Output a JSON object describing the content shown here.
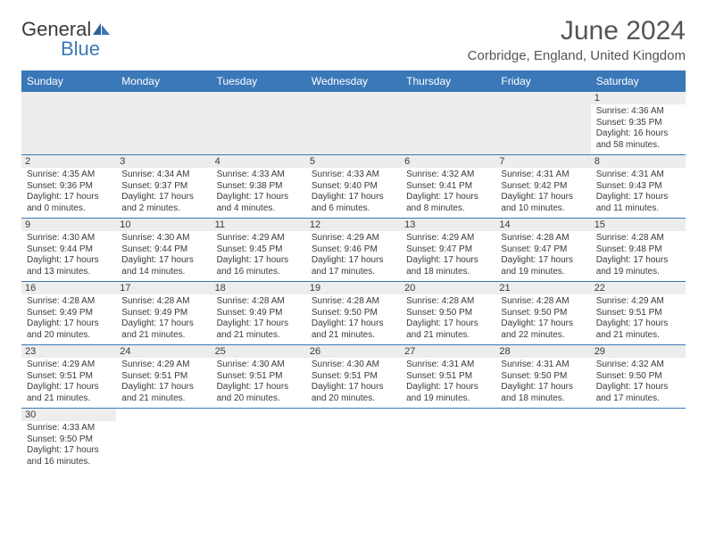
{
  "logo": {
    "text1": "General",
    "text2": "Blue"
  },
  "title": "June 2024",
  "location": "Corbridge, England, United Kingdom",
  "colors": {
    "header_bg": "#3a78b8",
    "header_fg": "#ffffff",
    "daynum_bg": "#ededed",
    "border": "#3a78b8",
    "text": "#3a3a3a"
  },
  "weekdays": [
    "Sunday",
    "Monday",
    "Tuesday",
    "Wednesday",
    "Thursday",
    "Friday",
    "Saturday"
  ],
  "days": {
    "1": {
      "sunrise": "4:36 AM",
      "sunset": "9:35 PM",
      "daylight": "16 hours and 58 minutes."
    },
    "2": {
      "sunrise": "4:35 AM",
      "sunset": "9:36 PM",
      "daylight": "17 hours and 0 minutes."
    },
    "3": {
      "sunrise": "4:34 AM",
      "sunset": "9:37 PM",
      "daylight": "17 hours and 2 minutes."
    },
    "4": {
      "sunrise": "4:33 AM",
      "sunset": "9:38 PM",
      "daylight": "17 hours and 4 minutes."
    },
    "5": {
      "sunrise": "4:33 AM",
      "sunset": "9:40 PM",
      "daylight": "17 hours and 6 minutes."
    },
    "6": {
      "sunrise": "4:32 AM",
      "sunset": "9:41 PM",
      "daylight": "17 hours and 8 minutes."
    },
    "7": {
      "sunrise": "4:31 AM",
      "sunset": "9:42 PM",
      "daylight": "17 hours and 10 minutes."
    },
    "8": {
      "sunrise": "4:31 AM",
      "sunset": "9:43 PM",
      "daylight": "17 hours and 11 minutes."
    },
    "9": {
      "sunrise": "4:30 AM",
      "sunset": "9:44 PM",
      "daylight": "17 hours and 13 minutes."
    },
    "10": {
      "sunrise": "4:30 AM",
      "sunset": "9:44 PM",
      "daylight": "17 hours and 14 minutes."
    },
    "11": {
      "sunrise": "4:29 AM",
      "sunset": "9:45 PM",
      "daylight": "17 hours and 16 minutes."
    },
    "12": {
      "sunrise": "4:29 AM",
      "sunset": "9:46 PM",
      "daylight": "17 hours and 17 minutes."
    },
    "13": {
      "sunrise": "4:29 AM",
      "sunset": "9:47 PM",
      "daylight": "17 hours and 18 minutes."
    },
    "14": {
      "sunrise": "4:28 AM",
      "sunset": "9:47 PM",
      "daylight": "17 hours and 19 minutes."
    },
    "15": {
      "sunrise": "4:28 AM",
      "sunset": "9:48 PM",
      "daylight": "17 hours and 19 minutes."
    },
    "16": {
      "sunrise": "4:28 AM",
      "sunset": "9:49 PM",
      "daylight": "17 hours and 20 minutes."
    },
    "17": {
      "sunrise": "4:28 AM",
      "sunset": "9:49 PM",
      "daylight": "17 hours and 21 minutes."
    },
    "18": {
      "sunrise": "4:28 AM",
      "sunset": "9:49 PM",
      "daylight": "17 hours and 21 minutes."
    },
    "19": {
      "sunrise": "4:28 AM",
      "sunset": "9:50 PM",
      "daylight": "17 hours and 21 minutes."
    },
    "20": {
      "sunrise": "4:28 AM",
      "sunset": "9:50 PM",
      "daylight": "17 hours and 21 minutes."
    },
    "21": {
      "sunrise": "4:28 AM",
      "sunset": "9:50 PM",
      "daylight": "17 hours and 22 minutes."
    },
    "22": {
      "sunrise": "4:29 AM",
      "sunset": "9:51 PM",
      "daylight": "17 hours and 21 minutes."
    },
    "23": {
      "sunrise": "4:29 AM",
      "sunset": "9:51 PM",
      "daylight": "17 hours and 21 minutes."
    },
    "24": {
      "sunrise": "4:29 AM",
      "sunset": "9:51 PM",
      "daylight": "17 hours and 21 minutes."
    },
    "25": {
      "sunrise": "4:30 AM",
      "sunset": "9:51 PM",
      "daylight": "17 hours and 20 minutes."
    },
    "26": {
      "sunrise": "4:30 AM",
      "sunset": "9:51 PM",
      "daylight": "17 hours and 20 minutes."
    },
    "27": {
      "sunrise": "4:31 AM",
      "sunset": "9:51 PM",
      "daylight": "17 hours and 19 minutes."
    },
    "28": {
      "sunrise": "4:31 AM",
      "sunset": "9:50 PM",
      "daylight": "17 hours and 18 minutes."
    },
    "29": {
      "sunrise": "4:32 AM",
      "sunset": "9:50 PM",
      "daylight": "17 hours and 17 minutes."
    },
    "30": {
      "sunrise": "4:33 AM",
      "sunset": "9:50 PM",
      "daylight": "17 hours and 16 minutes."
    }
  },
  "labels": {
    "sunrise": "Sunrise:",
    "sunset": "Sunset:",
    "daylight": "Daylight:"
  },
  "layout": {
    "first_day_column": 6,
    "num_days": 30
  }
}
